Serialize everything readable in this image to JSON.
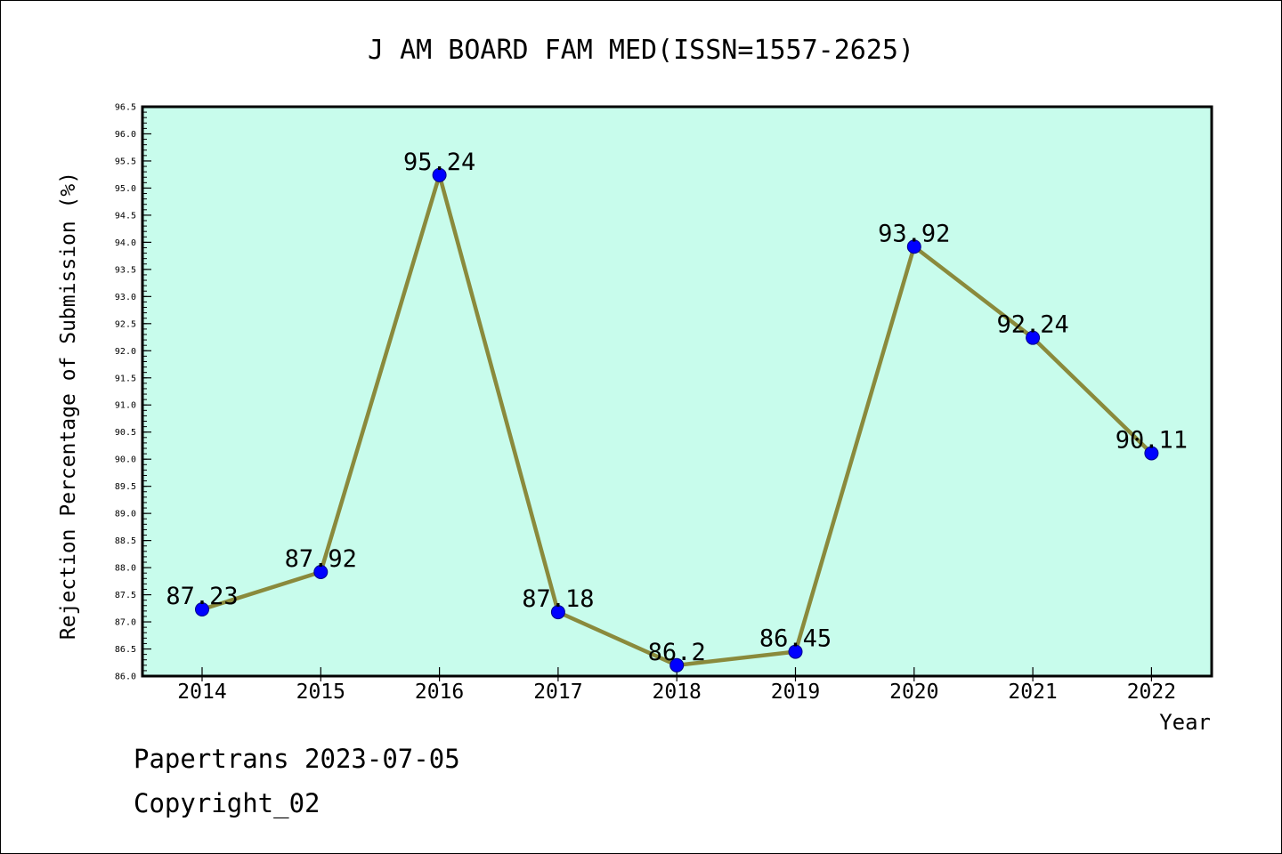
{
  "chart_data": {
    "type": "line",
    "title": "J AM BOARD FAM MED(ISSN=1557-2625)",
    "xlabel": "Year",
    "ylabel": "Rejection Percentage of Submission (%)",
    "categories": [
      "2014",
      "2015",
      "2016",
      "2017",
      "2018",
      "2019",
      "2020",
      "2021",
      "2022"
    ],
    "series": [
      {
        "values": [
          87.23,
          87.92,
          95.24,
          87.18,
          86.2,
          86.45,
          93.92,
          92.24,
          90.11
        ],
        "data_labels": [
          "87.23",
          "87.92",
          "95.24",
          "87.18",
          "86.2",
          "86.45",
          "93.92",
          "92.24",
          "90.11"
        ]
      }
    ],
    "ylim": [
      86.0,
      96.5
    ],
    "y_ticks": [
      "86.0",
      "86.5",
      "87.0",
      "87.5",
      "88.0",
      "88.5",
      "89.0",
      "89.5",
      "90.0",
      "90.5",
      "91.0",
      "91.5",
      "92.0",
      "92.5",
      "93.0",
      "93.5",
      "94.0",
      "94.5",
      "95.0",
      "95.5",
      "96.0",
      "96.5"
    ],
    "grid": false,
    "legend": "none",
    "colors": {
      "plot_background": "#c8fcec",
      "line": "#8a8a3c",
      "marker": "#0000ff"
    }
  },
  "footer": {
    "line1": "Papertrans 2023-07-05",
    "line2": "Copyright_02"
  }
}
